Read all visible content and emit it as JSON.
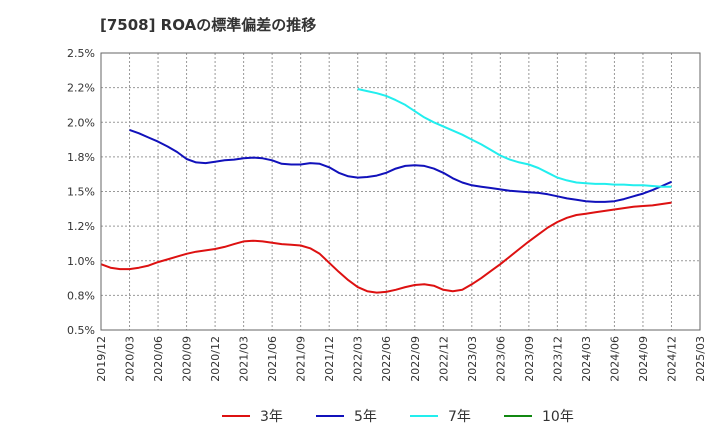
{
  "chart_data": {
    "type": "line",
    "title": "[7508]  ROAの標準偏差の推移",
    "ylim": [
      0.5,
      2.5
    ],
    "y_ticks": [
      "2.5%",
      "2.2%",
      "2.0%",
      "1.8%",
      "1.5%",
      "1.2%",
      "1.0%",
      "0.8%",
      "0.5%"
    ],
    "x_ticks": [
      "2019/12",
      "2020/03",
      "2020/06",
      "2020/09",
      "2020/12",
      "2021/03",
      "2021/06",
      "2021/09",
      "2021/12",
      "2022/03",
      "2022/06",
      "2022/09",
      "2022/12",
      "2023/03",
      "2023/06",
      "2023/09",
      "2023/12",
      "2024/03",
      "2024/06",
      "2024/09",
      "2024/12",
      "2025/03"
    ],
    "grid": true,
    "legend_position": "bottom",
    "series": [
      {
        "name": "3年",
        "color": "#dd1111",
        "x": [
          "2019/12",
          "2020/01",
          "2020/02",
          "2020/03",
          "2020/04",
          "2020/05",
          "2020/06",
          "2020/07",
          "2020/08",
          "2020/09",
          "2020/10",
          "2020/11",
          "2020/12",
          "2021/01",
          "2021/02",
          "2021/03",
          "2021/04",
          "2021/05",
          "2021/06",
          "2021/07",
          "2021/08",
          "2021/09",
          "2021/10",
          "2021/11",
          "2021/12",
          "2022/01",
          "2022/02",
          "2022/03",
          "2022/04",
          "2022/05",
          "2022/06",
          "2022/07",
          "2022/08",
          "2022/09",
          "2022/10",
          "2022/11",
          "2022/12",
          "2023/01",
          "2023/02",
          "2023/03",
          "2023/04",
          "2023/05",
          "2023/06",
          "2023/07",
          "2023/08",
          "2023/09",
          "2023/10",
          "2023/11",
          "2023/12",
          "2024/01",
          "2024/02",
          "2024/03",
          "2024/04",
          "2024/05",
          "2024/06",
          "2024/07",
          "2024/08",
          "2024/09",
          "2024/10",
          "2024/11",
          "2024/12"
        ],
        "values": [
          0.975,
          0.95,
          0.94,
          0.94,
          0.95,
          0.965,
          0.99,
          1.01,
          1.03,
          1.05,
          1.065,
          1.075,
          1.085,
          1.1,
          1.12,
          1.14,
          1.145,
          1.14,
          1.13,
          1.12,
          1.115,
          1.11,
          1.09,
          1.05,
          0.985,
          0.92,
          0.86,
          0.81,
          0.78,
          0.77,
          0.775,
          0.79,
          0.81,
          0.825,
          0.83,
          0.82,
          0.79,
          0.78,
          0.79,
          0.83,
          0.875,
          0.925,
          0.975,
          1.03,
          1.085,
          1.14,
          1.19,
          1.24,
          1.28,
          1.31,
          1.33,
          1.34,
          1.35,
          1.36,
          1.37,
          1.38,
          1.39,
          1.395,
          1.4,
          1.41,
          1.42
        ]
      },
      {
        "name": "5年",
        "color": "#1111bb",
        "x": [
          "2020/03",
          "2020/04",
          "2020/05",
          "2020/06",
          "2020/07",
          "2020/08",
          "2020/09",
          "2020/10",
          "2020/11",
          "2020/12",
          "2021/01",
          "2021/02",
          "2021/03",
          "2021/04",
          "2021/05",
          "2021/06",
          "2021/07",
          "2021/08",
          "2021/09",
          "2021/10",
          "2021/11",
          "2021/12",
          "2022/01",
          "2022/02",
          "2022/03",
          "2022/04",
          "2022/05",
          "2022/06",
          "2022/07",
          "2022/08",
          "2022/09",
          "2022/10",
          "2022/11",
          "2022/12",
          "2023/01",
          "2023/02",
          "2023/03",
          "2023/04",
          "2023/05",
          "2023/06",
          "2023/07",
          "2023/08",
          "2023/09",
          "2023/10",
          "2023/11",
          "2023/12",
          "2024/01",
          "2024/02",
          "2024/03",
          "2024/04",
          "2024/05",
          "2024/06",
          "2024/07",
          "2024/08",
          "2024/09",
          "2024/10",
          "2024/11",
          "2024/12"
        ],
        "values": [
          1.945,
          1.92,
          1.89,
          1.86,
          1.825,
          1.785,
          1.735,
          1.71,
          1.705,
          1.715,
          1.725,
          1.73,
          1.74,
          1.745,
          1.74,
          1.725,
          1.7,
          1.695,
          1.695,
          1.705,
          1.7,
          1.675,
          1.635,
          1.61,
          1.6,
          1.605,
          1.615,
          1.635,
          1.665,
          1.685,
          1.69,
          1.685,
          1.665,
          1.635,
          1.595,
          1.565,
          1.545,
          1.535,
          1.525,
          1.515,
          1.505,
          1.5,
          1.495,
          1.49,
          1.48,
          1.465,
          1.45,
          1.44,
          1.43,
          1.425,
          1.425,
          1.43,
          1.445,
          1.465,
          1.485,
          1.51,
          1.54,
          1.57
        ]
      },
      {
        "name": "7年",
        "color": "#22eeee",
        "x": [
          "2022/03",
          "2022/04",
          "2022/05",
          "2022/06",
          "2022/07",
          "2022/08",
          "2022/09",
          "2022/10",
          "2022/11",
          "2022/12",
          "2023/01",
          "2023/02",
          "2023/03",
          "2023/04",
          "2023/05",
          "2023/06",
          "2023/07",
          "2023/08",
          "2023/09",
          "2023/10",
          "2023/11",
          "2023/12",
          "2024/01",
          "2024/02",
          "2024/03",
          "2024/04",
          "2024/05",
          "2024/06",
          "2024/07",
          "2024/08",
          "2024/09",
          "2024/10",
          "2024/11",
          "2024/12"
        ],
        "values": [
          2.24,
          2.225,
          2.21,
          2.19,
          2.16,
          2.125,
          2.08,
          2.035,
          2.0,
          1.97,
          1.94,
          1.91,
          1.875,
          1.84,
          1.8,
          1.76,
          1.73,
          1.71,
          1.695,
          1.67,
          1.635,
          1.6,
          1.58,
          1.565,
          1.56,
          1.555,
          1.555,
          1.55,
          1.55,
          1.545,
          1.545,
          1.54,
          1.535,
          1.535
        ]
      },
      {
        "name": "10年",
        "color": "#118811",
        "x": [],
        "values": []
      }
    ]
  }
}
